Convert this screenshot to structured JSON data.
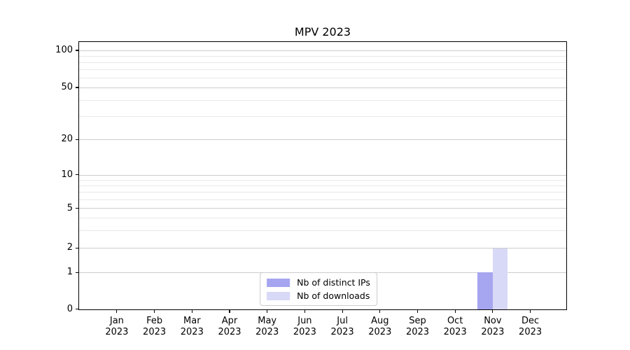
{
  "title": "MPV 2023",
  "chart_data": {
    "type": "bar",
    "title": "MPV 2023",
    "categories": [
      "Jan",
      "Feb",
      "Mar",
      "Apr",
      "May",
      "Jun",
      "Jul",
      "Aug",
      "Sep",
      "Oct",
      "Nov",
      "Dec"
    ],
    "year_label": "2023",
    "series": [
      {
        "name": "Nb of distinct IPs",
        "color": "#a5a5f0",
        "values": [
          0,
          0,
          0,
          0,
          0,
          0,
          0,
          0,
          0,
          0,
          1,
          0
        ]
      },
      {
        "name": "Nb of downloads",
        "color": "#d8d8f7",
        "values": [
          0,
          0,
          0,
          0,
          0,
          0,
          0,
          0,
          0,
          0,
          2,
          0
        ]
      }
    ],
    "y_axis": {
      "tick_values": [
        0,
        1,
        2,
        5,
        10,
        20,
        50,
        100
      ],
      "scale": "symlog",
      "ylim": [
        0,
        115
      ]
    },
    "x_axis": {
      "tick_count": 12
    },
    "grid": {
      "major": true,
      "minor": true,
      "minor_values": [
        3,
        4,
        6,
        7,
        8,
        9,
        30,
        40,
        60,
        70,
        80,
        90
      ]
    },
    "legend": {
      "position": "lower center",
      "entries": [
        "Nb of distinct IPs",
        "Nb of downloads"
      ]
    },
    "colors": {
      "background": "#ffffff",
      "spine": "#000000",
      "grid_major": "#cccccc",
      "grid_minor": "#e9e9e9"
    }
  }
}
